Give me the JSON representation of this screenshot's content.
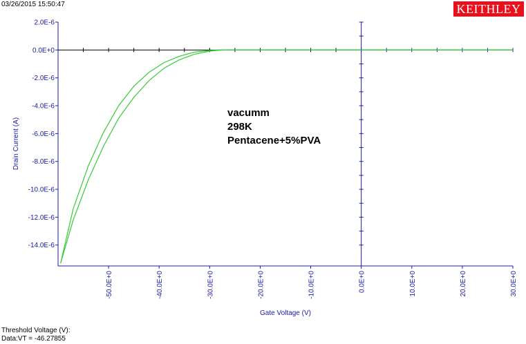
{
  "header": {
    "timestamp": "03/26/2015 15:50:47",
    "logo_text": "KEITHLEY"
  },
  "footer": {
    "line1": "Threshold Voltage (V):",
    "line2": "Data:VT = -46.27855"
  },
  "colors": {
    "curve": "#33cc33",
    "axis_blue": "#1a1aa6",
    "zero_line": "#000000",
    "logo_bg": "#e8111b"
  },
  "chart_data": {
    "type": "line",
    "xlabel": "Gate Voltage (V)",
    "ylabel": "Drain Current (A)",
    "xlim": [
      -60,
      30
    ],
    "ylim": [
      -1.55e-05,
      2e-06
    ],
    "x_ticks": [
      -50,
      -40,
      -30,
      -20,
      -10,
      0,
      10,
      20,
      30
    ],
    "x_tick_labels": [
      "-50.0E+0",
      "-40.0E+0",
      "-30.0E+0",
      "-20.0E+0",
      "-10.0E+0",
      "0.0E+0",
      "10.0E+0",
      "20.0E+0",
      "30.0E+0"
    ],
    "y_ticks": [
      2e-06,
      0,
      -2e-06,
      -4e-06,
      -6e-06,
      -8e-06,
      -1e-05,
      -1.2e-05,
      -1.4e-05
    ],
    "y_tick_labels": [
      "2.0E-6",
      "0.0E+0",
      "-2.0E-6",
      "-4.0E-6",
      "-6.0E-6",
      "-8.0E-6",
      "-10.0E-6",
      "-12.0E-6",
      "-14.0E-6"
    ],
    "annotations": [
      "vacumm",
      "298K",
      "Pentacene+5%PVA"
    ],
    "grid": false,
    "series": [
      {
        "x": [
          -59.5,
          -57,
          -54,
          -51,
          -48,
          -45,
          -42,
          -39,
          -36,
          -33,
          -30,
          -28,
          -26,
          -25,
          -20,
          -10,
          0,
          10,
          20,
          30
        ],
        "y": [
          -1.53e-05,
          -1.22e-05,
          -9.3e-06,
          -6.9e-06,
          -4.9e-06,
          -3.4e-06,
          -2.2e-06,
          -1.3e-06,
          -7e-07,
          -3e-07,
          -8e-08,
          -2e-08,
          0,
          0,
          0,
          0,
          0,
          0,
          0,
          0
        ]
      },
      {
        "x": [
          -59.5,
          -57,
          -54,
          -51,
          -48,
          -45,
          -42,
          -39,
          -36,
          -33,
          -30,
          -28,
          -26,
          -25,
          -20,
          -10,
          0,
          10,
          20,
          30
        ],
        "y": [
          -1.53e-05,
          -1.14e-05,
          -8.3e-06,
          -5.9e-06,
          -4e-06,
          -2.6e-06,
          -1.6e-06,
          -9e-07,
          -4.5e-07,
          -1.5e-07,
          -4e-08,
          0,
          0,
          0,
          0,
          0,
          0,
          0,
          0,
          0
        ]
      }
    ]
  }
}
